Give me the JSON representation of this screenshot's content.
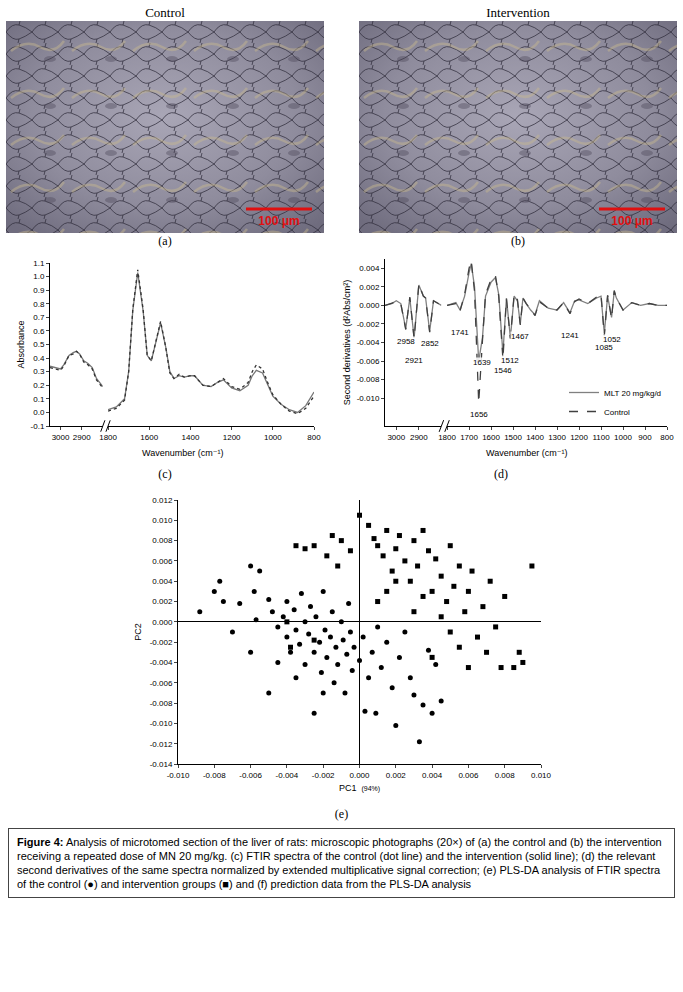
{
  "photos": [
    {
      "panel": "(a)",
      "title": "Control",
      "scale_bar": "100 μm"
    },
    {
      "panel": "(b)",
      "title": "Intervention",
      "scale_bar": "100 μm"
    }
  ],
  "chart_data": [
    {
      "panel": "(c)",
      "type": "line",
      "ylabel": "Absorbance",
      "xlabel": "Wavenumber (cm⁻¹)",
      "xlim": [
        3050,
        800
      ],
      "x_break": [
        2800,
        1800
      ],
      "xticks": [
        3000,
        2900,
        1800,
        1600,
        1400,
        1200,
        1000,
        800
      ],
      "ylim": [
        -0.1,
        1.1
      ],
      "yticks": [
        -0.1,
        {
          "value": 0,
          "label": "0.0"
        },
        0.1,
        0.2,
        0.3,
        0.4,
        0.5,
        0.6,
        0.7,
        0.8,
        0.9,
        {
          "value": 1,
          "label": "1.0"
        },
        1.1
      ],
      "grid": false,
      "x": [
        3050,
        3020,
        3000,
        2985,
        2960,
        2940,
        2925,
        2910,
        2890,
        2870,
        2850,
        2830,
        2800,
        1800,
        1760,
        1720,
        1700,
        1680,
        1656,
        1630,
        1610,
        1590,
        1570,
        1545,
        1520,
        1500,
        1480,
        1455,
        1430,
        1400,
        1380,
        1340,
        1300,
        1270,
        1240,
        1200,
        1160,
        1120,
        1100,
        1080,
        1050,
        1020,
        1000,
        960,
        920,
        880,
        840,
        800
      ],
      "series": [
        {
          "color": "#777777",
          "line_style": "solid",
          "values": [
            0.34,
            0.33,
            0.32,
            0.35,
            0.42,
            0.44,
            0.45,
            0.43,
            0.38,
            0.36,
            0.33,
            0.25,
            0.19,
            0.02,
            0.04,
            0.1,
            0.3,
            0.75,
            1.03,
            0.75,
            0.42,
            0.38,
            0.5,
            0.66,
            0.48,
            0.3,
            0.25,
            0.27,
            0.26,
            0.27,
            0.27,
            0.2,
            0.19,
            0.22,
            0.24,
            0.18,
            0.16,
            0.2,
            0.27,
            0.31,
            0.29,
            0.18,
            0.12,
            0.06,
            0.02,
            0.0,
            0.05,
            0.15
          ]
        },
        {
          "color": "#333333",
          "line_style": "dot",
          "values": [
            0.33,
            0.32,
            0.31,
            0.34,
            0.42,
            0.43,
            0.45,
            0.43,
            0.37,
            0.35,
            0.32,
            0.24,
            0.18,
            0.01,
            0.03,
            0.09,
            0.3,
            0.76,
            1.05,
            0.76,
            0.42,
            0.38,
            0.51,
            0.67,
            0.48,
            0.29,
            0.25,
            0.28,
            0.26,
            0.27,
            0.27,
            0.2,
            0.19,
            0.22,
            0.25,
            0.19,
            0.17,
            0.22,
            0.3,
            0.35,
            0.32,
            0.2,
            0.13,
            0.06,
            0.01,
            -0.01,
            0.03,
            0.12
          ]
        }
      ]
    },
    {
      "panel": "(d)",
      "type": "line",
      "ylabel": "Second derivatives (d²Abs/cm²)",
      "xlabel": "Wavenumber (cm⁻¹)",
      "xlim": [
        3050,
        800
      ],
      "x_break": [
        2800,
        1800
      ],
      "xticks": [
        3000,
        2900,
        1800,
        1700,
        1600,
        1500,
        1400,
        1300,
        1200,
        1100,
        1000,
        900,
        800
      ],
      "ylim": [
        -0.013,
        0.005
      ],
      "yticks": [
        {
          "value": -0.01,
          "label": "-0.010"
        },
        -0.008,
        -0.006,
        -0.004,
        -0.002,
        {
          "value": 0,
          "label": "0.000"
        },
        0.002,
        0.004
      ],
      "grid": false,
      "legend": "lower right",
      "peaks": [
        2958,
        2921,
        2852,
        1741,
        1656,
        1639,
        1546,
        1512,
        1467,
        1241,
        1085,
        1052
      ],
      "x": [
        3050,
        3020,
        3000,
        2980,
        2958,
        2940,
        2921,
        2900,
        2880,
        2870,
        2852,
        2835,
        2800,
        1800,
        1760,
        1741,
        1720,
        1700,
        1690,
        1675,
        1656,
        1639,
        1625,
        1600,
        1580,
        1565,
        1546,
        1530,
        1512,
        1495,
        1480,
        1467,
        1455,
        1440,
        1420,
        1400,
        1380,
        1340,
        1300,
        1270,
        1241,
        1220,
        1200,
        1160,
        1120,
        1100,
        1085,
        1070,
        1052,
        1040,
        1030,
        1000,
        960,
        920,
        880,
        840,
        800
      ],
      "series": [
        {
          "name": "MLT 20 mg/kg/d",
          "color": "#808080",
          "line_style": "solid",
          "values": [
            0,
            0.0002,
            0.0005,
            0.0002,
            -0.0025,
            0.0008,
            -0.0035,
            0.0022,
            0.001,
            0.0008,
            -0.0028,
            0.0005,
            0,
            0,
            0.0003,
            -0.0005,
            0.001,
            0.0035,
            0.0045,
            0.002,
            -0.006,
            -0.0035,
            0.001,
            0.0025,
            0.003,
            0.0012,
            -0.0052,
            0.0008,
            -0.0035,
            0.001,
            0.0005,
            -0.002,
            0.0008,
            0.0002,
            -0.0005,
            -0.001,
            0.0005,
            -0.0003,
            -0.0005,
            0.0003,
            -0.0008,
            0.0005,
            0.0006,
            0.0002,
            0.0008,
            0.001,
            -0.003,
            0.001,
            -0.0013,
            0.0015,
            0.0008,
            -0.0005,
            0.0003,
            0,
            0.0002,
            0,
            0
          ]
        },
        {
          "name": "Control",
          "color": "#404040",
          "line_style": "dash",
          "values": [
            0,
            0.0002,
            0.0004,
            0.0002,
            -0.0026,
            0.0009,
            -0.0036,
            0.0023,
            0.001,
            0.0008,
            -0.0029,
            0.0005,
            0,
            0,
            0.0002,
            -0.0006,
            0.0012,
            0.004,
            0.0048,
            0.0015,
            -0.0105,
            -0.0038,
            0.0012,
            0.0028,
            0.0032,
            0.001,
            -0.0058,
            0.0007,
            -0.0036,
            0.0012,
            0.0006,
            -0.0021,
            0.0008,
            0.0002,
            -0.0005,
            -0.0011,
            0.0004,
            -0.0003,
            -0.0005,
            0.0003,
            -0.0009,
            0.0004,
            0.0007,
            0.0002,
            0.0009,
            0.0012,
            -0.0033,
            0.0011,
            -0.0014,
            0.0016,
            0.0008,
            -0.0005,
            0.0003,
            0,
            0.0002,
            0,
            0
          ]
        }
      ]
    },
    {
      "panel": "(e)",
      "type": "scatter",
      "xlabel": "PC1",
      "xlabel_note": "(94%)",
      "ylabel": "PC2",
      "xlim": [
        -0.01,
        0.01
      ],
      "xticks": [
        {
          "value": -0.01,
          "label": "-0.010"
        },
        -0.008,
        -0.006,
        -0.004,
        -0.002,
        {
          "value": 0,
          "label": "0.000"
        },
        0.002,
        0.004,
        0.006,
        0.008,
        {
          "value": 0.01,
          "label": "0.010"
        }
      ],
      "ylim": [
        -0.014,
        0.012
      ],
      "yticks": [
        -0.014,
        -0.012,
        {
          "value": -0.01,
          "label": "-0.010"
        },
        -0.008,
        -0.006,
        -0.004,
        -0.002,
        {
          "value": 0,
          "label": "0.000"
        },
        0.002,
        0.004,
        0.006,
        0.008,
        {
          "value": 0.01,
          "label": "0.010"
        },
        0.012
      ],
      "grid": false,
      "series": [
        {
          "marker": "circle",
          "color": "#000000",
          "x": [
            -0.0088,
            -0.008,
            -0.0077,
            -0.0075,
            -0.0066,
            -0.006,
            -0.0058,
            -0.0055,
            -0.0057,
            -0.005,
            -0.0048,
            -0.0045,
            -0.0042,
            -0.004,
            -0.004,
            -0.0038,
            -0.0036,
            -0.0035,
            -0.0033,
            -0.0032,
            -0.003,
            -0.003,
            -0.0028,
            -0.0027,
            -0.0025,
            -0.0025,
            -0.0024,
            -0.0022,
            -0.0021,
            -0.002,
            -0.0019,
            -0.0018,
            -0.0016,
            -0.0015,
            -0.0014,
            -0.0013,
            -0.0012,
            -0.001,
            -0.0009,
            -0.0008,
            -0.0007,
            -0.0006,
            -0.0005,
            -0.0004,
            -0.0003,
            0,
            0.0002,
            0.0003,
            0.0005,
            0.0007,
            0.0009,
            0.001,
            0.0012,
            0.0015,
            0.0018,
            0.002,
            0.0022,
            0.0025,
            0.0028,
            0.003,
            0.0033,
            0.0035,
            0.0038,
            0.004,
            0.0042,
            0.0045,
            -0.005,
            -0.0045,
            -0.006,
            -0.0035,
            -0.007,
            -0.002
          ],
          "values": [
            0.001,
            0.003,
            0.004,
            0.002,
            0.0018,
            0.0055,
            0.003,
            0.005,
            0.0002,
            0.0022,
            0.001,
            -0.0005,
            0.0005,
            0.002,
            -0.0015,
            -0.003,
            0.0012,
            -0.0008,
            -0.0022,
            0.0028,
            0,
            -0.0042,
            -0.0012,
            0.0015,
            -0.003,
            -0.009,
            0.0005,
            -0.002,
            -0.005,
            0.003,
            -0.0008,
            -0.0035,
            -0.0015,
            0.001,
            -0.006,
            -0.0025,
            -0.0042,
            0,
            -0.0018,
            -0.007,
            -0.0032,
            0.0018,
            -0.001,
            -0.0048,
            -0.0025,
            -0.0038,
            -0.0015,
            -0.0088,
            -0.0055,
            -0.003,
            -0.009,
            -0.0005,
            -0.0045,
            -0.002,
            -0.0065,
            -0.0102,
            -0.0035,
            -0.001,
            -0.0055,
            -0.0072,
            -0.0118,
            -0.0082,
            -0.0028,
            -0.009,
            -0.0042,
            -0.0078,
            -0.007,
            -0.004,
            -0.003,
            -0.0055,
            -0.001,
            -0.007
          ]
        },
        {
          "marker": "square",
          "color": "#000000",
          "x": [
            0,
            0.0005,
            -0.0035,
            -0.003,
            -0.0025,
            -0.0018,
            -0.0015,
            -0.001,
            -0.0012,
            -0.0005,
            0.0008,
            0.001,
            0.0013,
            0.0015,
            0.0018,
            0.002,
            0.0022,
            0.0025,
            0.0028,
            0.003,
            0.0032,
            0.0035,
            0.0038,
            0.004,
            0.0042,
            0.0045,
            0.0048,
            0.005,
            0.0052,
            0.0055,
            0.0058,
            0.006,
            0.0062,
            0.0065,
            0.0068,
            0.007,
            0.0072,
            0.0075,
            0.0078,
            0.008,
            0.0085,
            0.0088,
            0.009,
            0.0095,
            -0.004,
            -0.0038,
            -0.0025,
            0.001,
            0.0015,
            0.003,
            0.0035,
            0.002,
            0.0045,
            0.005,
            0.004,
            0.006,
            0.0055
          ],
          "values": [
            0.0105,
            0.0095,
            0.0075,
            0.0072,
            0.0075,
            0.0065,
            0.0085,
            0.008,
            0.0055,
            0.007,
            0.0082,
            0.0075,
            0.0065,
            0.009,
            0.005,
            0.0072,
            0.0085,
            0.006,
            0.004,
            0.008,
            0.0055,
            0.009,
            0.007,
            0.003,
            0.0062,
            0.0045,
            0.002,
            0.0075,
            0.0035,
            0.0055,
            0.001,
            0.003,
            0.005,
            -0.0015,
            0.0015,
            -0.003,
            0.004,
            -0.0005,
            -0.0045,
            0.0025,
            -0.0045,
            -0.003,
            -0.004,
            0.0055,
            0,
            -0.0025,
            -0.0018,
            0.002,
            0.003,
            0.001,
            0.0025,
            0.004,
            0.0005,
            -0.001,
            -0.0035,
            -0.0045,
            -0.0025
          ]
        }
      ]
    }
  ],
  "caption": {
    "label": "Figure 4:",
    "text": "Analysis of microtomed section of the liver of rats: microscopic photographs (20×) of (a) the control and (b) the intervention receiving a repeated dose of MN 20 mg/kg. (c) FTIR spectra of the control (dot line) and the intervention (solid line); (d) the relevant second derivatives of the same spectra normalized by extended multiplicative signal correction; (e) PLS-DA analysis of FTIR spectra of the control (●) and intervention groups (■) and (f) prediction data from the PLS-DA analysis"
  }
}
